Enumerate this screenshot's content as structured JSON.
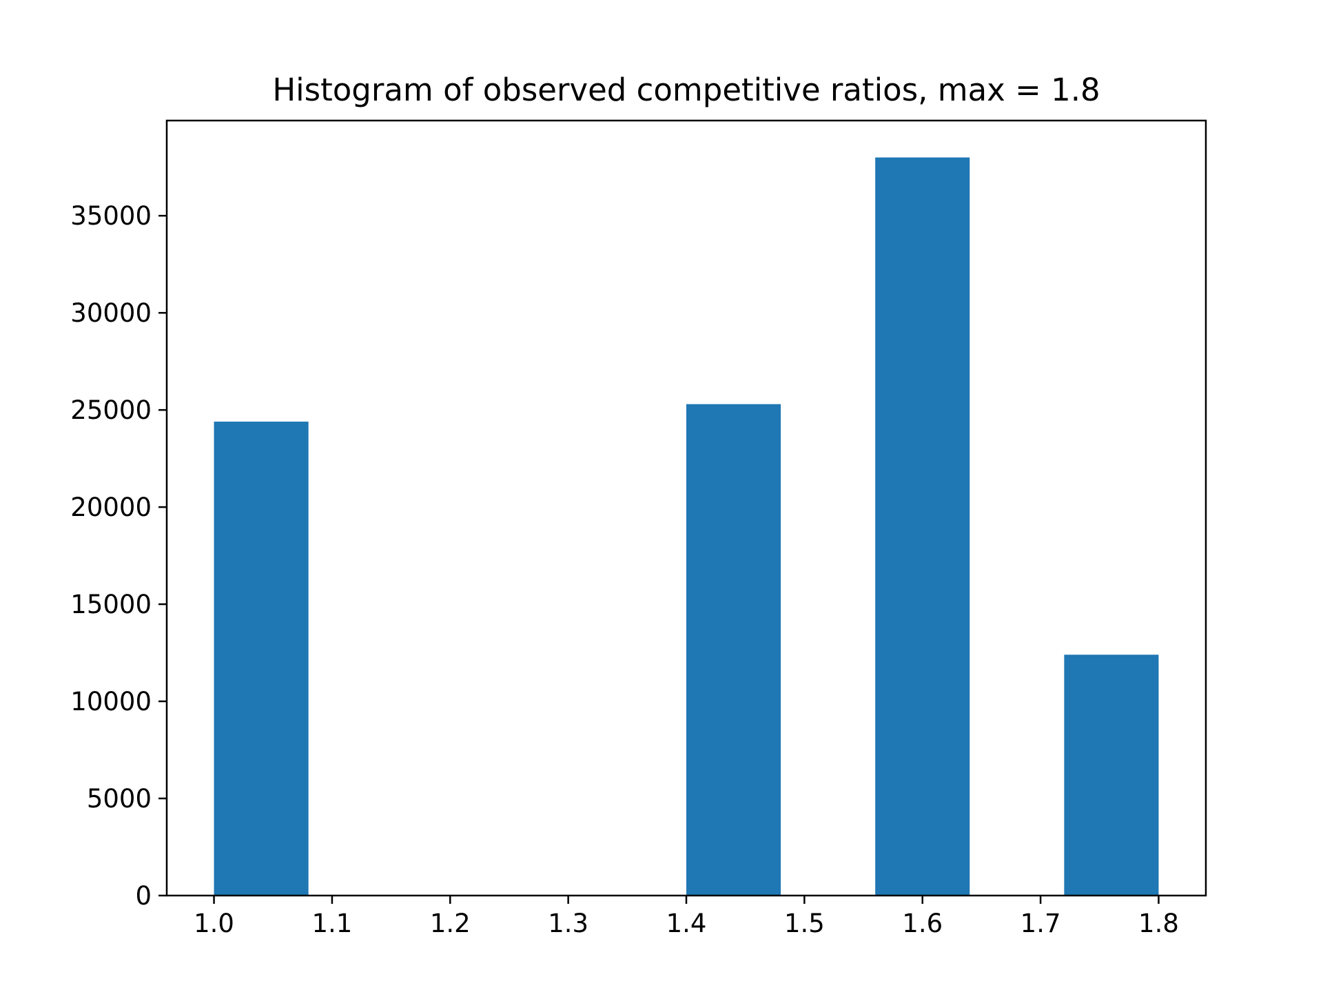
{
  "chart_data": {
    "type": "bar",
    "title": "Histogram of observed competitive ratios, max = 1.8",
    "xlabel": "",
    "ylabel": "",
    "bins": [
      {
        "x0": 1.0,
        "x1": 1.08,
        "count": 24400
      },
      {
        "x0": 1.08,
        "x1": 1.16,
        "count": 0
      },
      {
        "x0": 1.16,
        "x1": 1.24,
        "count": 0
      },
      {
        "x0": 1.24,
        "x1": 1.32,
        "count": 0
      },
      {
        "x0": 1.32,
        "x1": 1.4,
        "count": 0
      },
      {
        "x0": 1.4,
        "x1": 1.48,
        "count": 25300
      },
      {
        "x0": 1.48,
        "x1": 1.56,
        "count": 0
      },
      {
        "x0": 1.56,
        "x1": 1.64,
        "count": 38000
      },
      {
        "x0": 1.64,
        "x1": 1.72,
        "count": 0
      },
      {
        "x0": 1.72,
        "x1": 1.8,
        "count": 12400
      }
    ],
    "xlim": [
      0.96,
      1.84
    ],
    "ylim": [
      0,
      39900
    ],
    "xticks": [
      1.0,
      1.1,
      1.2,
      1.3,
      1.4,
      1.5,
      1.6,
      1.7,
      1.8
    ],
    "xtick_labels": [
      "1.0",
      "1.1",
      "1.2",
      "1.3",
      "1.4",
      "1.5",
      "1.6",
      "1.7",
      "1.8"
    ],
    "yticks": [
      0,
      5000,
      10000,
      15000,
      20000,
      25000,
      30000,
      35000
    ],
    "ytick_labels": [
      "0",
      "5000",
      "10000",
      "15000",
      "20000",
      "25000",
      "30000",
      "35000"
    ],
    "grid": false,
    "legend": "none",
    "bar_color": "#1f77b4"
  }
}
